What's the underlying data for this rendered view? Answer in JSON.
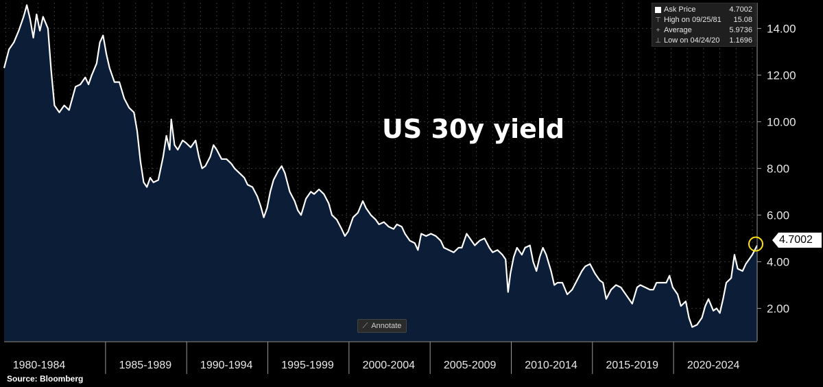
{
  "chart_data": {
    "type": "area",
    "title": "US 30y yield",
    "x_categories": [
      "1980-1984",
      "1985-1989",
      "1990-1994",
      "1995-1999",
      "2000-2004",
      "2005-2009",
      "2010-2014",
      "2015-2019",
      "2020-2024"
    ],
    "y_ticks": [
      "2.00",
      "4.00",
      "6.00",
      "8.00",
      "10.00",
      "12.00",
      "14.00"
    ],
    "ylim": [
      0.6,
      15.1
    ],
    "xlim": [
      1977.9,
      2024.3
    ],
    "grid": true,
    "series": [
      {
        "name": "Ask Price",
        "color": "#ffffff",
        "fill": "#0c1d38",
        "points": [
          [
            1977.9,
            12.3
          ],
          [
            1978.2,
            13.1
          ],
          [
            1978.5,
            13.4
          ],
          [
            1978.8,
            13.9
          ],
          [
            1979.1,
            14.5
          ],
          [
            1979.3,
            15.0
          ],
          [
            1979.5,
            14.4
          ],
          [
            1979.7,
            13.6
          ],
          [
            1979.9,
            14.6
          ],
          [
            1980.1,
            13.9
          ],
          [
            1980.3,
            14.5
          ],
          [
            1980.6,
            14.0
          ],
          [
            1980.8,
            12.2
          ],
          [
            1981.0,
            10.7
          ],
          [
            1981.3,
            10.4
          ],
          [
            1981.6,
            10.7
          ],
          [
            1981.9,
            10.5
          ],
          [
            1982.1,
            11.0
          ],
          [
            1982.3,
            11.5
          ],
          [
            1982.6,
            11.6
          ],
          [
            1982.9,
            11.9
          ],
          [
            1983.1,
            11.6
          ],
          [
            1983.3,
            12.0
          ],
          [
            1983.6,
            12.5
          ],
          [
            1983.8,
            13.4
          ],
          [
            1984.0,
            13.7
          ],
          [
            1984.2,
            12.9
          ],
          [
            1984.4,
            12.3
          ],
          [
            1984.7,
            11.7
          ],
          [
            1985.0,
            11.7
          ],
          [
            1985.3,
            11.0
          ],
          [
            1985.6,
            10.6
          ],
          [
            1985.9,
            10.4
          ],
          [
            1986.1,
            9.6
          ],
          [
            1986.3,
            8.3
          ],
          [
            1986.5,
            7.4
          ],
          [
            1986.7,
            7.2
          ],
          [
            1986.9,
            7.6
          ],
          [
            1987.1,
            7.4
          ],
          [
            1987.4,
            7.5
          ],
          [
            1987.7,
            8.5
          ],
          [
            1987.9,
            9.4
          ],
          [
            1988.1,
            8.8
          ],
          [
            1988.2,
            10.1
          ],
          [
            1988.4,
            9.0
          ],
          [
            1988.6,
            8.8
          ],
          [
            1988.9,
            9.2
          ],
          [
            1989.1,
            9.1
          ],
          [
            1989.4,
            8.9
          ],
          [
            1989.7,
            9.2
          ],
          [
            1989.9,
            8.5
          ],
          [
            1990.1,
            8.0
          ],
          [
            1990.3,
            8.1
          ],
          [
            1990.6,
            8.5
          ],
          [
            1990.8,
            9.0
          ],
          [
            1991.0,
            8.8
          ],
          [
            1991.3,
            8.4
          ],
          [
            1991.6,
            8.4
          ],
          [
            1991.9,
            8.2
          ],
          [
            1992.1,
            8.0
          ],
          [
            1992.4,
            7.8
          ],
          [
            1992.7,
            7.6
          ],
          [
            1992.9,
            7.3
          ],
          [
            1993.2,
            7.2
          ],
          [
            1993.5,
            6.8
          ],
          [
            1993.7,
            6.4
          ],
          [
            1993.9,
            5.9
          ],
          [
            1994.1,
            6.3
          ],
          [
            1994.3,
            7.0
          ],
          [
            1994.5,
            7.5
          ],
          [
            1994.8,
            7.9
          ],
          [
            1995.0,
            8.1
          ],
          [
            1995.2,
            7.8
          ],
          [
            1995.5,
            7.0
          ],
          [
            1995.8,
            6.6
          ],
          [
            1996.0,
            6.2
          ],
          [
            1996.2,
            6.0
          ],
          [
            1996.5,
            6.7
          ],
          [
            1996.8,
            7.0
          ],
          [
            1997.0,
            6.9
          ],
          [
            1997.3,
            7.1
          ],
          [
            1997.6,
            6.9
          ],
          [
            1997.9,
            6.5
          ],
          [
            1998.1,
            6.0
          ],
          [
            1998.4,
            5.8
          ],
          [
            1998.7,
            5.4
          ],
          [
            1998.9,
            5.1
          ],
          [
            1999.1,
            5.3
          ],
          [
            1999.4,
            5.9
          ],
          [
            1999.7,
            6.1
          ],
          [
            2000.0,
            6.6
          ],
          [
            2000.2,
            6.3
          ],
          [
            2000.5,
            6.0
          ],
          [
            2000.8,
            5.8
          ],
          [
            2001.0,
            5.6
          ],
          [
            2001.3,
            5.7
          ],
          [
            2001.6,
            5.5
          ],
          [
            2001.9,
            5.4
          ],
          [
            2002.1,
            5.6
          ],
          [
            2002.4,
            5.5
          ],
          [
            2002.6,
            5.2
          ],
          [
            2002.9,
            4.9
          ],
          [
            2003.2,
            4.8
          ],
          [
            2003.4,
            4.5
          ],
          [
            2003.6,
            5.2
          ],
          [
            2003.9,
            5.1
          ],
          [
            2004.2,
            5.2
          ],
          [
            2004.5,
            5.1
          ],
          [
            2004.8,
            4.9
          ],
          [
            2005.0,
            4.6
          ],
          [
            2005.3,
            4.5
          ],
          [
            2005.6,
            4.4
          ],
          [
            2005.9,
            4.6
          ],
          [
            2006.1,
            4.6
          ],
          [
            2006.4,
            5.2
          ],
          [
            2006.7,
            4.9
          ],
          [
            2006.9,
            4.7
          ],
          [
            2007.2,
            4.9
          ],
          [
            2007.5,
            5.0
          ],
          [
            2007.8,
            4.6
          ],
          [
            2008.0,
            4.4
          ],
          [
            2008.3,
            4.5
          ],
          [
            2008.6,
            4.3
          ],
          [
            2008.8,
            4.1
          ],
          [
            2008.95,
            2.7
          ],
          [
            2009.1,
            3.5
          ],
          [
            2009.3,
            4.2
          ],
          [
            2009.5,
            4.6
          ],
          [
            2009.8,
            4.3
          ],
          [
            2010.0,
            4.6
          ],
          [
            2010.3,
            4.7
          ],
          [
            2010.5,
            4.0
          ],
          [
            2010.7,
            3.6
          ],
          [
            2010.9,
            4.2
          ],
          [
            2011.1,
            4.6
          ],
          [
            2011.3,
            4.3
          ],
          [
            2011.6,
            3.6
          ],
          [
            2011.8,
            3.0
          ],
          [
            2012.0,
            3.1
          ],
          [
            2012.3,
            3.1
          ],
          [
            2012.6,
            2.6
          ],
          [
            2012.9,
            2.8
          ],
          [
            2013.2,
            3.2
          ],
          [
            2013.5,
            3.6
          ],
          [
            2013.7,
            3.8
          ],
          [
            2014.0,
            3.9
          ],
          [
            2014.3,
            3.5
          ],
          [
            2014.6,
            3.2
          ],
          [
            2014.8,
            3.1
          ],
          [
            2015.0,
            2.4
          ],
          [
            2015.3,
            2.8
          ],
          [
            2015.6,
            3.0
          ],
          [
            2015.9,
            2.9
          ],
          [
            2016.1,
            2.7
          ],
          [
            2016.4,
            2.4
          ],
          [
            2016.6,
            2.2
          ],
          [
            2016.9,
            2.9
          ],
          [
            2017.1,
            3.0
          ],
          [
            2017.4,
            2.9
          ],
          [
            2017.7,
            2.8
          ],
          [
            2017.9,
            2.8
          ],
          [
            2018.1,
            3.1
          ],
          [
            2018.4,
            3.1
          ],
          [
            2018.7,
            3.1
          ],
          [
            2018.9,
            3.4
          ],
          [
            2019.1,
            2.9
          ],
          [
            2019.4,
            2.6
          ],
          [
            2019.6,
            2.1
          ],
          [
            2019.9,
            2.3
          ],
          [
            2020.1,
            1.6
          ],
          [
            2020.3,
            1.2
          ],
          [
            2020.6,
            1.3
          ],
          [
            2020.9,
            1.6
          ],
          [
            2021.1,
            2.1
          ],
          [
            2021.3,
            2.4
          ],
          [
            2021.6,
            1.9
          ],
          [
            2021.8,
            2.0
          ],
          [
            2022.0,
            1.8
          ],
          [
            2022.2,
            2.4
          ],
          [
            2022.4,
            3.1
          ],
          [
            2022.7,
            3.3
          ],
          [
            2022.9,
            4.3
          ],
          [
            2023.1,
            3.7
          ],
          [
            2023.4,
            3.6
          ],
          [
            2023.6,
            3.9
          ],
          [
            2023.8,
            4.1
          ],
          [
            2024.0,
            4.3
          ],
          [
            2024.3,
            4.7002
          ]
        ]
      }
    ],
    "last_value": "4.7002",
    "annotate_label": "Annotate",
    "legend": [
      {
        "icon": "swatch-icon",
        "label": "Ask Price",
        "value": "4.7002"
      },
      {
        "icon": "high-marker-icon",
        "label": "High on 09/25/81",
        "value": "15.08"
      },
      {
        "icon": "average-marker-icon",
        "label": "Average",
        "value": "5.9736"
      },
      {
        "icon": "low-marker-icon",
        "label": "Low on 04/24/20",
        "value": "1.1696"
      }
    ],
    "source": "Source: Bloomberg",
    "colors": {
      "background": "#000000",
      "area_fill": "#0c1d38",
      "line": "#ffffff",
      "grid": "#3a3a3a",
      "highlight_circle": "#ffe11a"
    }
  }
}
